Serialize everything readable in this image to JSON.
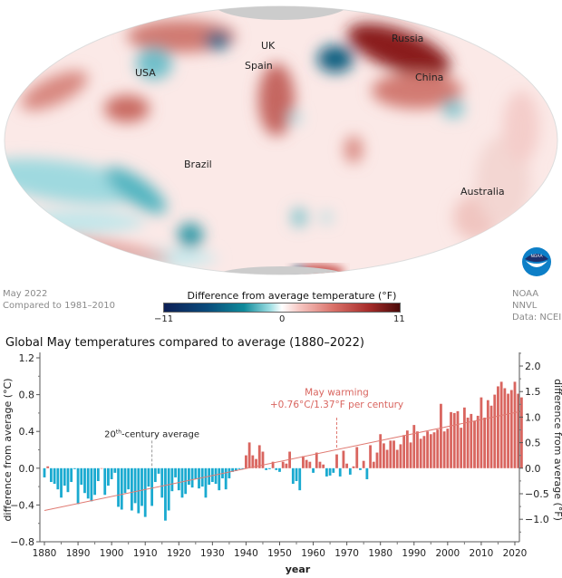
{
  "map": {
    "labels": {
      "usa": "USA",
      "uk": "UK",
      "spain": "Spain",
      "russia": "Russia",
      "china": "China",
      "brazil": "Brazil",
      "australia": "Australia"
    },
    "caption_left": [
      "May 2022",
      "Compared to 1981–2010"
    ],
    "caption_right": [
      "NOAA NNVL",
      "Data: NCEI"
    ],
    "logo_text": "NOAA",
    "colorbar": {
      "title": "Difference from average temperature (°F)",
      "min_label": "−11",
      "mid_label": "0",
      "max_label": "11",
      "colors": {
        "cold_extreme": "#0c1f55",
        "cold": "#0f8a9a",
        "neutral": "#ffffff",
        "warm": "#d97068",
        "warm_extreme": "#4a0a0a"
      }
    }
  },
  "chart_data": {
    "type": "bar",
    "title": "Global May temperatures compared to average (1880–2022)",
    "xlabel": "year",
    "ylabel": "difference from average (°C)",
    "ylabel_right": "difference from average (°F)",
    "ylim": [
      -0.8,
      1.2
    ],
    "ylim_right": [
      -1.44,
      2.16
    ],
    "yticks": [
      "1.2",
      "0.8",
      "0.4",
      "0.0",
      "−0.4",
      "−0.8"
    ],
    "yticks_values": [
      1.2,
      0.8,
      0.4,
      0.0,
      -0.4,
      -0.8
    ],
    "yticks_right": [
      "2.0",
      "1.5",
      "1.0",
      "0.5",
      "0.0",
      "−0.5",
      "−1.0"
    ],
    "yticks_right_values": [
      2.0,
      1.5,
      1.0,
      0.5,
      0.0,
      -0.5,
      -1.0
    ],
    "xlim": [
      1879,
      2023
    ],
    "xticks": [
      "1880",
      "1890",
      "1900",
      "1910",
      "1920",
      "1930",
      "1940",
      "1950",
      "1960",
      "1970",
      "1980",
      "1990",
      "2000",
      "2010",
      "2020"
    ],
    "xticks_values": [
      1880,
      1890,
      1900,
      1910,
      1920,
      1930,
      1940,
      1950,
      1960,
      1970,
      1980,
      1990,
      2000,
      2010,
      2020
    ],
    "colors": {
      "positive": "#d9655f",
      "negative": "#1aaad0",
      "trend": "#e07a72",
      "annotation_dashed": "#999999"
    },
    "start_year": 1880,
    "values": [
      -0.1,
      0.02,
      -0.15,
      -0.17,
      -0.23,
      -0.32,
      -0.19,
      -0.26,
      -0.15,
      -0.01,
      -0.39,
      -0.18,
      -0.27,
      -0.33,
      -0.36,
      -0.29,
      -0.14,
      0.0,
      -0.29,
      -0.19,
      -0.12,
      -0.05,
      -0.42,
      -0.45,
      -0.27,
      -0.23,
      -0.46,
      -0.38,
      -0.49,
      -0.41,
      -0.53,
      -0.2,
      -0.41,
      -0.15,
      -0.06,
      -0.32,
      -0.57,
      -0.46,
      -0.25,
      -0.1,
      -0.24,
      -0.32,
      -0.28,
      -0.18,
      -0.21,
      -0.12,
      -0.22,
      -0.2,
      -0.32,
      -0.18,
      -0.15,
      -0.17,
      -0.24,
      -0.11,
      -0.23,
      -0.11,
      -0.04,
      -0.03,
      -0.01,
      -0.01,
      0.14,
      0.28,
      0.14,
      0.1,
      0.25,
      0.18,
      -0.02,
      -0.01,
      0.07,
      -0.02,
      -0.04,
      0.07,
      0.05,
      0.18,
      -0.17,
      -0.14,
      -0.24,
      0.13,
      0.09,
      0.07,
      -0.05,
      0.17,
      0.07,
      0.04,
      -0.09,
      -0.08,
      -0.05,
      0.15,
      -0.09,
      0.19,
      0.05,
      -0.07,
      0.02,
      0.23,
      -0.02,
      0.08,
      -0.12,
      0.25,
      0.07,
      0.17,
      0.37,
      0.27,
      0.2,
      0.3,
      0.3,
      0.2,
      0.26,
      0.36,
      0.41,
      0.28,
      0.47,
      0.4,
      0.32,
      0.35,
      0.4,
      0.37,
      0.39,
      0.42,
      0.7,
      0.4,
      0.43,
      0.61,
      0.6,
      0.62,
      0.44,
      0.66,
      0.55,
      0.59,
      0.51,
      0.57,
      0.77,
      0.55,
      0.74,
      0.68,
      0.8,
      0.89,
      0.94,
      0.87,
      0.81,
      0.85,
      0.94,
      0.81,
      0.77
    ],
    "trend": {
      "slope_per_century_c": 0.76,
      "start": [
        1880,
        -0.46
      ],
      "end": [
        2022,
        0.62
      ]
    },
    "annotations": {
      "baseline": {
        "text_main": "20",
        "text_sup": "th",
        "text_rest": "-century average",
        "year": 1912
      },
      "warming": {
        "line1": "May warming",
        "line2": "+0.76°C/1.37°F per century",
        "year": 1967
      }
    }
  }
}
